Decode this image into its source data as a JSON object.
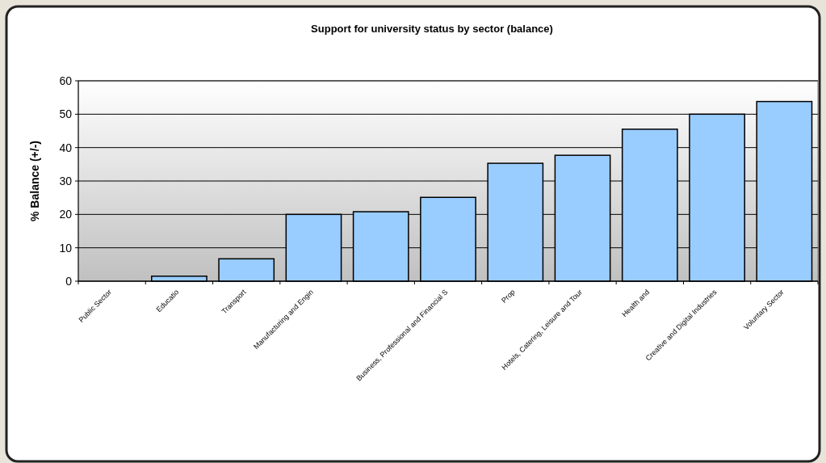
{
  "chart_data": {
    "type": "bar",
    "title": "Support for university status by sector (balance)",
    "ylabel": "% Balance (+/-)",
    "categories": [
      "Public Sector",
      "Educatio",
      "Transport",
      "Manufacturing and Engin",
      null,
      "Business, Professional and Financial S",
      "Prop",
      "Hotels, Catering, Leisure and Tour",
      "Health and",
      "Creative and Digital Industries",
      "Voluntary Sector"
    ],
    "values": [
      0,
      1.5,
      6.7,
      20,
      20.8,
      25.1,
      35.3,
      37.7,
      45.5,
      50,
      53.8
    ],
    "color": "#99ccff",
    "ylim": [
      0,
      60
    ],
    "yticks": [
      0,
      10,
      20,
      30,
      40,
      50,
      60
    ],
    "grid": "y"
  }
}
